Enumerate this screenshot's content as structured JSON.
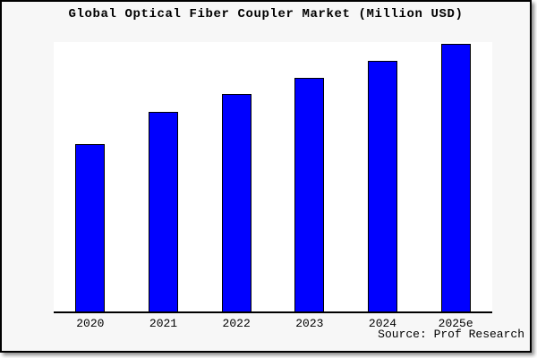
{
  "window": {
    "title": "Global Optical Fiber Coupler Market (Million USD)"
  },
  "source": {
    "label": "Source: Prof Research"
  },
  "colors": {
    "bar_fill": "#0000ff",
    "bar_border": "#000000",
    "panel_background": "#f7f7f7",
    "plot_background": "#ffffff",
    "axis": "#000000",
    "title_text": "#000000"
  },
  "chart_data": {
    "type": "bar",
    "title": "Global Optical Fiber Coupler Market (Million USD)",
    "categories": [
      "2020",
      "2021",
      "2022",
      "2023",
      "2024",
      "2025e"
    ],
    "values": [
      188,
      224,
      245,
      263,
      282,
      301
    ],
    "xlabel": "",
    "ylabel": "",
    "ylim": [
      0,
      303
    ],
    "y_axis_labeled": false,
    "grid": false,
    "legend": false,
    "bar_color": "#0000ff",
    "bar_edge_color": "#000000"
  }
}
